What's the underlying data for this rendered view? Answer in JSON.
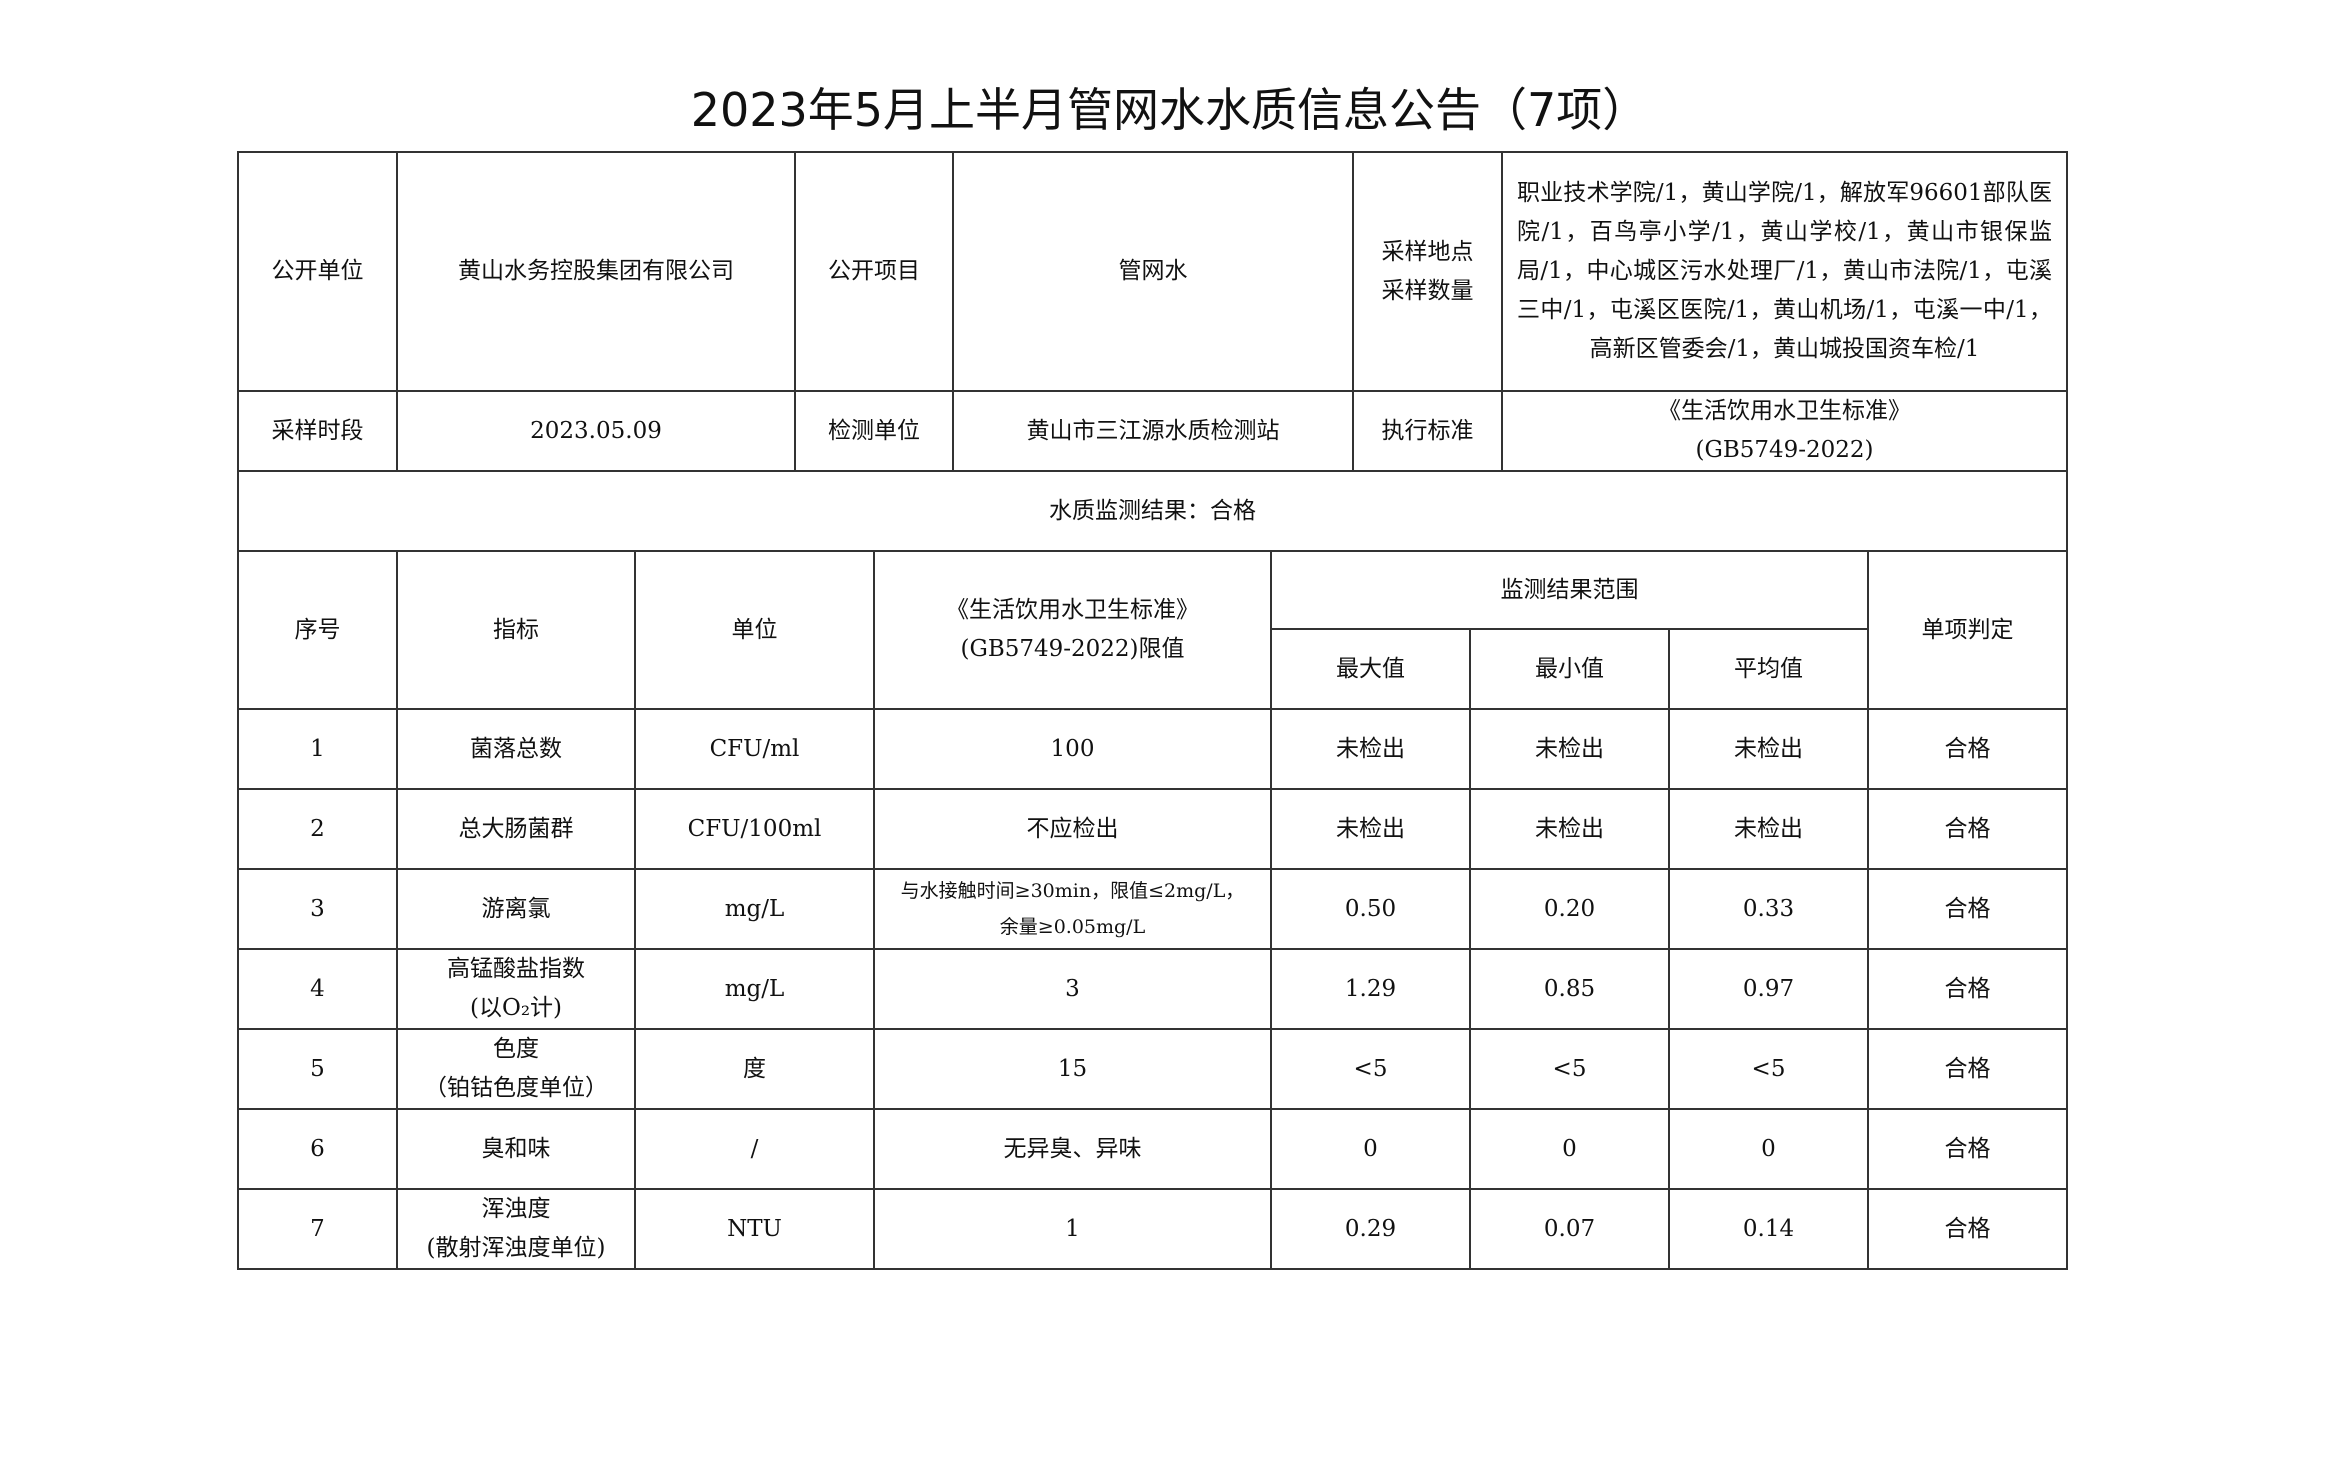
{
  "title": "2023年5月上半月管网水水质信息公告（7项）",
  "info": {
    "publisher_label": "公开单位",
    "publisher": "黄山水务控股集团有限公司",
    "item_label": "公开项目",
    "item": "管网水",
    "sites_label_1": "采样地点",
    "sites_label_2": "采样数量",
    "sites": "职业技术学院/1，黄山学院/1，解放军96601部队医院/1，百鸟亭小学/1，黄山学校/1，黄山市银保监局/1，中心城区污水处理厂/1，黄山市法院/1，屯溪三中/1，屯溪区医院/1，黄山机场/1，屯溪一中/1，高新区管委会/1，黄山城投国资车检/1",
    "period_label": "采样时段",
    "period": "2023.05.09",
    "lab_label": "检测单位",
    "lab": "黄山市三江源水质检测站",
    "standard_label": "执行标准",
    "standard_1": "《生活饮用水卫生标准》",
    "standard_2": "(GB5749-2022)",
    "result": "水质监测结果：合格"
  },
  "headers": {
    "no": "序号",
    "indicator": "指标",
    "unit": "单位",
    "limit_1": "《生活饮用水卫生标准》",
    "limit_2": "(GB5749-2022)限值",
    "range": "监测结果范围",
    "max": "最大值",
    "min": "最小值",
    "avg": "平均值",
    "verdict": "单项判定"
  },
  "rows": [
    {
      "no": "1",
      "name_1": "菌落总数",
      "name_2": "",
      "unit": "CFU/ml",
      "limit_1": "100",
      "limit_2": "",
      "max": "未检出",
      "min": "未检出",
      "avg": "未检出",
      "verdict": "合格"
    },
    {
      "no": "2",
      "name_1": "总大肠菌群",
      "name_2": "",
      "unit": "CFU/100ml",
      "limit_1": "不应检出",
      "limit_2": "",
      "max": "未检出",
      "min": "未检出",
      "avg": "未检出",
      "verdict": "合格"
    },
    {
      "no": "3",
      "name_1": "游离氯",
      "name_2": "",
      "unit": "mg/L",
      "limit_1": "与水接触时间≥30min，限值≤2mg/L，",
      "limit_2": "余量≥0.05mg/L",
      "max": "0.50",
      "min": "0.20",
      "avg": "0.33",
      "verdict": "合格"
    },
    {
      "no": "4",
      "name_1": "高锰酸盐指数",
      "name_2": "(以O₂计)",
      "unit": "mg/L",
      "limit_1": "3",
      "limit_2": "",
      "max": "1.29",
      "min": "0.85",
      "avg": "0.97",
      "verdict": "合格"
    },
    {
      "no": "5",
      "name_1": "色度",
      "name_2": "（铂钴色度单位）",
      "unit": "度",
      "limit_1": "15",
      "limit_2": "",
      "max": "<5",
      "min": "<5",
      "avg": "<5",
      "verdict": "合格"
    },
    {
      "no": "6",
      "name_1": "臭和味",
      "name_2": "",
      "unit": "/",
      "limit_1": "无异臭、异味",
      "limit_2": "",
      "max": "0",
      "min": "0",
      "avg": "0",
      "verdict": "合格"
    },
    {
      "no": "7",
      "name_1": "浑浊度",
      "name_2": "(散射浑浊度单位)",
      "unit": "NTU",
      "limit_1": "1",
      "limit_2": "",
      "max": "0.29",
      "min": "0.07",
      "avg": "0.14",
      "verdict": "合格"
    }
  ]
}
